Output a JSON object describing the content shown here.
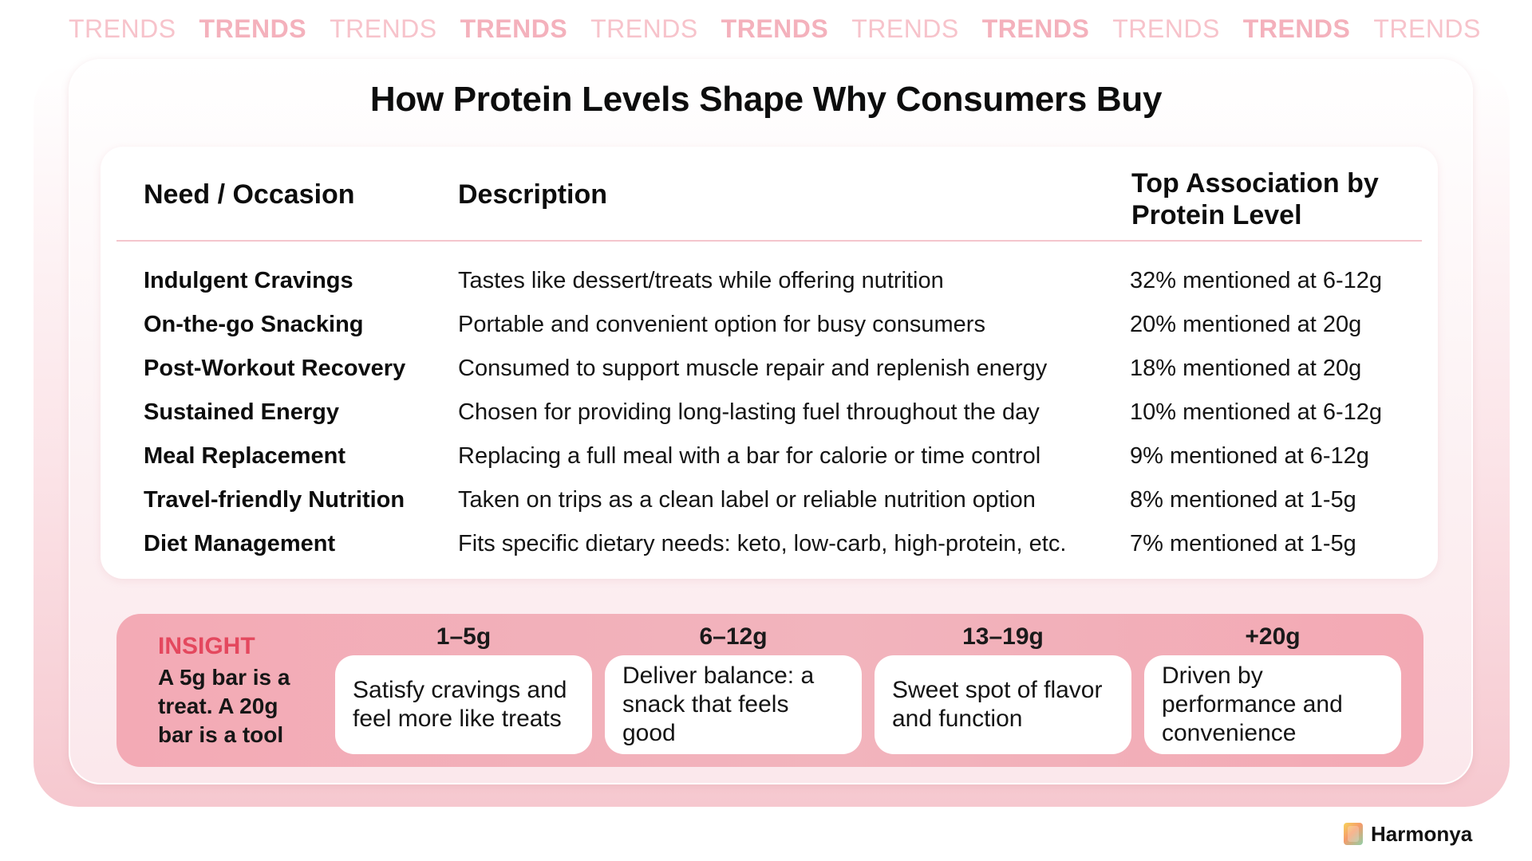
{
  "watermark": {
    "words": [
      "TRENDS",
      "TRENDS",
      "TRENDS",
      "TRENDS",
      "TRENDS",
      "TRENDS",
      "TRENDS",
      "TRENDS",
      "TRENDS",
      "TRENDS",
      "TRENDS"
    ]
  },
  "title": "How Protein Levels Shape Why Consumers Buy",
  "table": {
    "headers": {
      "need": "Need / Occasion",
      "description": "Description",
      "top_association": "Top Association by Protein Level"
    },
    "rows": [
      {
        "need": "Indulgent Cravings",
        "description": "Tastes like dessert/treats while offering nutrition",
        "top": "32% mentioned at 6-12g"
      },
      {
        "need": "On-the-go Snacking",
        "description": "Portable and convenient option for busy consumers",
        "top": "20% mentioned at 20g"
      },
      {
        "need": "Post-Workout Recovery",
        "description": "Consumed to support muscle repair and replenish energy",
        "top": "18% mentioned at 20g"
      },
      {
        "need": "Sustained Energy",
        "description": "Chosen for providing long-lasting fuel throughout the day",
        "top": "10% mentioned at 6-12g"
      },
      {
        "need": "Meal Replacement",
        "description": "Replacing a full meal with a bar for calorie or time control",
        "top": "9% mentioned at 6-12g"
      },
      {
        "need": "Travel-friendly Nutrition",
        "description": "Taken on trips as a clean label or reliable nutrition option",
        "top": "8% mentioned at 1-5g"
      },
      {
        "need": "Diet Management",
        "description": "Fits specific dietary needs: keto, low-carb, high-protein, etc.",
        "top": "7% mentioned at 1-5g"
      }
    ]
  },
  "insight": {
    "label": "INSIGHT",
    "text": "A 5g bar is a treat. A 20g bar is a tool",
    "tiers": [
      {
        "range": "1–5g",
        "text": "Satisfy cravings and feel more like treats"
      },
      {
        "range": "6–12g",
        "text": "Deliver balance: a snack that feels good"
      },
      {
        "range": "13–19g",
        "text": "Sweet spot of flavor and function"
      },
      {
        "range": "+20g",
        "text": "Driven by performance and convenience"
      }
    ]
  },
  "brand": {
    "name": "Harmonya",
    "icon": "harmonya-logo-icon"
  },
  "colors": {
    "accent": "#e4485e",
    "insight_background": "#f3aab5",
    "watermark": "#f4b1bc"
  }
}
